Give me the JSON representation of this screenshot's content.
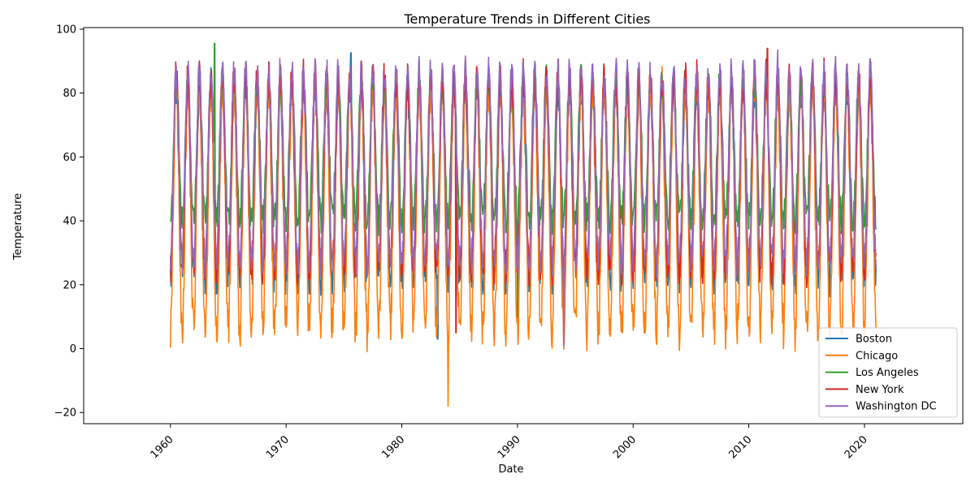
{
  "chart_data": {
    "type": "line",
    "title": "Temperature Trends in Different Cities",
    "xlabel": "Date",
    "ylabel": "Temperature",
    "xlim": [
      1952.5,
      2028.5
    ],
    "ylim": [
      -23.5,
      100.5
    ],
    "x_ticks": [
      1960,
      1970,
      1980,
      1990,
      2000,
      2010,
      2020
    ],
    "x_tick_labels": [
      "1960",
      "1970",
      "1980",
      "1990",
      "2000",
      "2010",
      "2020"
    ],
    "y_ticks": [
      -20,
      0,
      20,
      40,
      60,
      80,
      100
    ],
    "y_tick_labels": [
      "−20",
      "0",
      "20",
      "40",
      "60",
      "80",
      "100"
    ],
    "x_tick_rotation": 45,
    "grid": false,
    "legend_position": "lower-right",
    "x_range": [
      1960.0,
      2021.0
    ],
    "series": [
      {
        "name": "Boston",
        "color": "#1f77b4",
        "base": 52,
        "amplitude": 30,
        "noise": 6,
        "spike_max": 92.6,
        "spike_min": 3.0,
        "spike_low_year": 1983.1,
        "spike_year": 1975.6
      },
      {
        "name": "Chicago",
        "color": "#ff7f0e",
        "base": 44,
        "amplitude": 38,
        "noise": 7,
        "spike_max": 89.0,
        "spike_min": -18.0,
        "spike_low_year": 1984.0,
        "spike_year": 1976.5
      },
      {
        "name": "Los Angeles",
        "color": "#2ca02c",
        "base": 62,
        "amplitude": 22,
        "noise": 5,
        "spike_max": 95.5,
        "spike_min": 10.0,
        "spike_low_year": 1990.0,
        "spike_year": 1963.8
      },
      {
        "name": "New York",
        "color": "#d62728",
        "base": 55,
        "amplitude": 30,
        "noise": 6,
        "spike_max": 94.0,
        "spike_min": 5.0,
        "spike_low_year": 1984.7,
        "spike_year": 2011.6
      },
      {
        "name": "Washington DC",
        "color": "#9467bd",
        "base": 57,
        "amplitude": 30,
        "noise": 5,
        "spike_max": 93.5,
        "spike_min": 1.0,
        "spike_low_year": 1994.0,
        "spike_year": 2012.5
      }
    ]
  }
}
